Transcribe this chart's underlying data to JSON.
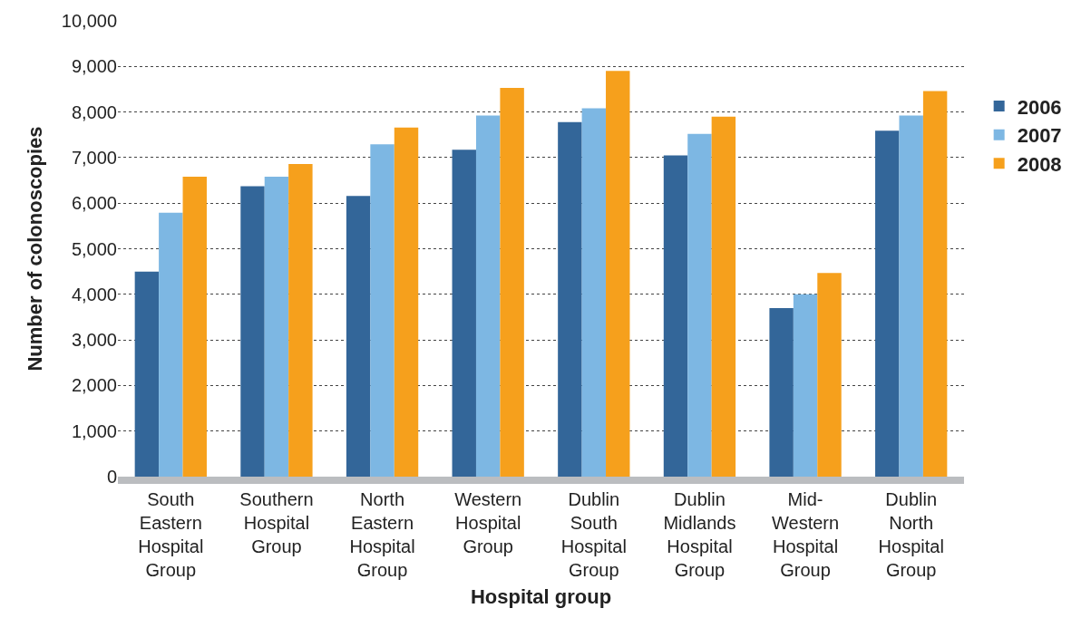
{
  "chart_data": {
    "type": "bar",
    "xlabel": "Hospital group",
    "ylabel": "Number of colonoscopies",
    "categories": [
      "South Eastern Hospital Group",
      "Southern Hospital Group",
      "North Eastern Hospital Group",
      "Western Hospital Group",
      "Dublin South Hospital Group",
      "Dublin Midlands Hospital Group",
      "Mid-Western Hospital Group",
      "Dublin North Hospital Group"
    ],
    "series": [
      {
        "name": "2006",
        "color": "#336699",
        "values": [
          4500,
          6370,
          6160,
          7170,
          7780,
          7050,
          3700,
          7590
        ]
      },
      {
        "name": "2007",
        "color": "#7db7e3",
        "values": [
          5790,
          6580,
          7290,
          7920,
          8080,
          7520,
          4000,
          7920
        ]
      },
      {
        "name": "2008",
        "color": "#f6a01c",
        "values": [
          6580,
          6860,
          7660,
          8530,
          8900,
          7900,
          4470,
          8460
        ]
      }
    ],
    "ylim": [
      0,
      10000
    ],
    "yticks": [
      {
        "value": 0,
        "label": "0"
      },
      {
        "value": 1000,
        "label": "1,000"
      },
      {
        "value": 2000,
        "label": "2,000"
      },
      {
        "value": 3000,
        "label": "3,000"
      },
      {
        "value": 4000,
        "label": "4,000"
      },
      {
        "value": 5000,
        "label": "5,000"
      },
      {
        "value": 6000,
        "label": "6,000"
      },
      {
        "value": 7000,
        "label": "7,000"
      },
      {
        "value": 8000,
        "label": "8,000"
      },
      {
        "value": 9000,
        "label": "9,000"
      },
      {
        "value": 10000,
        "label": "10,000"
      }
    ],
    "grid": "y",
    "legend": "right"
  }
}
